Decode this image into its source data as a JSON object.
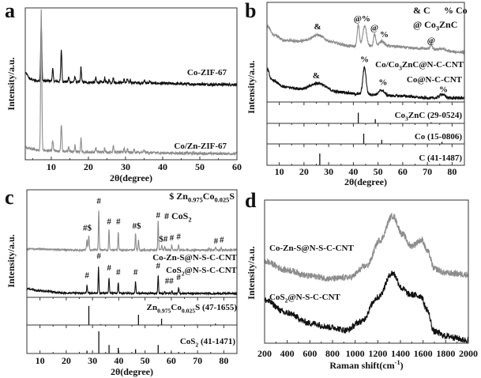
{
  "chart_data": [
    {
      "panel_label": "a",
      "type": "line",
      "xlabel": "2θ(degree)",
      "ylabel": "Intensity/a.u.",
      "xlim": [
        3,
        60
      ],
      "ylim": [
        0,
        100
      ],
      "xticks": [
        10,
        20,
        30,
        40,
        50,
        60
      ],
      "minor_step": 5,
      "series": [
        {
          "name": "Co-ZIF-67",
          "color": "#111111",
          "noise": 0.9,
          "baseline": [
            [
              3,
              57
            ],
            [
              4.5,
              53
            ],
            [
              6,
              52
            ],
            [
              20,
              51
            ],
            [
              60,
              49.5
            ]
          ],
          "peaks": [
            [
              7.3,
              38,
              0.22
            ],
            [
              10.4,
              8,
              0.2
            ],
            [
              12.7,
              21,
              0.2
            ],
            [
              14.7,
              3,
              0.18
            ],
            [
              16.4,
              4,
              0.18
            ],
            [
              18.0,
              10,
              0.18
            ],
            [
              22.0,
              3,
              0.18
            ],
            [
              24.4,
              3,
              0.18
            ],
            [
              25.6,
              2,
              0.18
            ],
            [
              26.7,
              3,
              0.18
            ],
            [
              29.6,
              2,
              0.18
            ],
            [
              30.5,
              2.5,
              0.18
            ],
            [
              31.3,
              2,
              0.18
            ],
            [
              35.0,
              2,
              0.2
            ],
            [
              36.5,
              1.5,
              0.2
            ]
          ]
        },
        {
          "name": "Co/Zn-ZIF-67",
          "color": "#8c8c8c",
          "noise": 0.9,
          "baseline": [
            [
              3,
              8
            ],
            [
              5,
              7
            ],
            [
              7,
              6
            ],
            [
              20,
              5
            ],
            [
              60,
              4
            ]
          ],
          "peaks": [
            [
              7.3,
              94,
              0.22
            ],
            [
              10.4,
              7,
              0.2
            ],
            [
              12.7,
              18,
              0.2
            ],
            [
              14.7,
              3,
              0.18
            ],
            [
              16.4,
              4,
              0.18
            ],
            [
              18.0,
              9,
              0.18
            ],
            [
              22.0,
              3,
              0.18
            ],
            [
              24.4,
              3,
              0.18
            ],
            [
              26.7,
              5,
              0.18
            ],
            [
              29.6,
              3,
              0.18
            ],
            [
              30.5,
              2.5,
              0.18
            ],
            [
              32.3,
              2,
              0.18
            ],
            [
              35.0,
              1.5,
              0.2
            ]
          ]
        }
      ],
      "references": [],
      "annotations": [],
      "legend": []
    },
    {
      "panel_label": "b",
      "type": "line",
      "xlabel": "2θ(degree)",
      "ylabel": "Intensity/a.u.",
      "xlim": [
        5,
        85
      ],
      "ylim": [
        0,
        100
      ],
      "xticks": [
        10,
        20,
        30,
        40,
        50,
        60,
        70,
        80
      ],
      "minor_step": 5,
      "series": [
        {
          "name": "Co/Co_{3}ZnC@N-C-CNT",
          "color": "#8c8c8c",
          "noise": 1.4,
          "baseline": [
            [
              5,
              76
            ],
            [
              8,
              67
            ],
            [
              12,
              62
            ],
            [
              18,
              61
            ],
            [
              30,
              60
            ],
            [
              40,
              56
            ],
            [
              55,
              56
            ],
            [
              65,
              54
            ],
            [
              85,
              50
            ]
          ],
          "peaks": [
            [
              25.5,
              7,
              3.5
            ],
            [
              42.0,
              22,
              0.6
            ],
            [
              44.6,
              20,
              1.1
            ],
            [
              48.6,
              12,
              0.6
            ],
            [
              51.5,
              5,
              1.5
            ],
            [
              71.5,
              5,
              0.6
            ],
            [
              76,
              2,
              1.5
            ]
          ]
        },
        {
          "name": "Co@N-C-CNT",
          "color": "#111111",
          "noise": 1.4,
          "baseline": [
            [
              5,
              33
            ],
            [
              7,
              22
            ],
            [
              12,
              15
            ],
            [
              20,
              13
            ],
            [
              35,
              10
            ],
            [
              42,
              8
            ],
            [
              60,
              6
            ],
            [
              70,
              4
            ],
            [
              85,
              4
            ]
          ],
          "peaks": [
            [
              26,
              7,
              4
            ],
            [
              44.5,
              27,
              0.9
            ],
            [
              51.5,
              5,
              1.5
            ],
            [
              76,
              4,
              1.5
            ]
          ]
        }
      ],
      "references": [
        {
          "name": "Co_{3}ZnC (29-0524)",
          "sticks": [
            [
              42.0,
              0.5
            ],
            [
              48.9,
              0.2
            ],
            [
              71.5,
              0.05
            ]
          ]
        },
        {
          "name": "Co (15-0806)",
          "sticks": [
            [
              44.2,
              0.5
            ],
            [
              51.5,
              0.2
            ],
            [
              75.9,
              0.1
            ]
          ]
        },
        {
          "name": "C (41-1487)",
          "sticks": [
            [
              26.4,
              0.55
            ]
          ]
        }
      ],
      "annotations": [
        {
          "text": "&",
          "x": 25.5,
          "y": 73,
          "color": "#111111"
        },
        {
          "text": "@%",
          "x": 43.5,
          "y": 81,
          "color": "#111111"
        },
        {
          "text": "@",
          "x": 48.5,
          "y": 72,
          "color": "#111111"
        },
        {
          "text": "%",
          "x": 52.5,
          "y": 65,
          "color": "#111111"
        },
        {
          "text": "@",
          "x": 71.5,
          "y": 59,
          "color": "#111111"
        },
        {
          "text": "%",
          "x": 44.5,
          "y": 40,
          "color": "#111111"
        },
        {
          "text": "&",
          "x": 25.0,
          "y": 24,
          "color": "#111111"
        },
        {
          "text": "%",
          "x": 52.0,
          "y": 17,
          "color": "#111111"
        },
        {
          "text": "%",
          "x": 76.5,
          "y": 10,
          "color": "#111111"
        }
      ],
      "legend": [
        "& C",
        "% Co",
        "@ Co_{3}ZnC"
      ]
    },
    {
      "panel_label": "c",
      "type": "line",
      "xlabel": "2θ(degree)",
      "ylabel": "Intensity/a.u.",
      "xlim": [
        5,
        85
      ],
      "ylim": [
        0,
        100
      ],
      "xticks": [
        10,
        20,
        30,
        40,
        50,
        60,
        70,
        80
      ],
      "minor_step": 5,
      "series": [
        {
          "name": "Co-Zn-S@N-S-C-CNT",
          "color": "#8c8c8c",
          "noise": 0.8,
          "baseline": [
            [
              5,
              45
            ],
            [
              25,
              44
            ],
            [
              85,
              44
            ]
          ],
          "peaks": [
            [
              27.9,
              10,
              0.25
            ],
            [
              28.6,
              13,
              0.25
            ],
            [
              32.4,
              38,
              0.2
            ],
            [
              36.3,
              19,
              0.2
            ],
            [
              39.8,
              17,
              0.2
            ],
            [
              46.4,
              16,
              0.2
            ],
            [
              47.5,
              10,
              0.2
            ],
            [
              55.0,
              28,
              0.2
            ],
            [
              56.4,
              5,
              0.2
            ],
            [
              57.5,
              3,
              0.2
            ],
            [
              60.2,
              5,
              0.2
            ],
            [
              62.8,
              5,
              0.2
            ],
            [
              74.5,
              2,
              0.2
            ],
            [
              76.9,
              3,
              0.2
            ],
            [
              79.0,
              2,
              0.2
            ]
          ]
        },
        {
          "name": "CoS_{2}@N-S-C-CNT",
          "color": "#111111",
          "noise": 0.8,
          "baseline": [
            [
              5,
              8
            ],
            [
              10,
              6
            ],
            [
              20,
              4
            ],
            [
              85,
              3.5
            ]
          ],
          "peaks": [
            [
              27.9,
              8,
              0.2
            ],
            [
              32.3,
              24,
              0.2
            ],
            [
              36.3,
              14,
              0.2
            ],
            [
              39.8,
              10,
              0.2
            ],
            [
              46.4,
              11,
              0.2
            ],
            [
              55.0,
              17,
              0.2
            ],
            [
              57.5,
              1.5,
              0.2
            ],
            [
              60.2,
              2.5,
              0.2
            ],
            [
              62.8,
              5,
              0.2
            ],
            [
              74.5,
              1,
              0.2
            ]
          ]
        }
      ],
      "references": [
        {
          "name": "Zn_{0.975}Co_{0.025}S (47-1655)",
          "sticks": [
            [
              28.6,
              0.69
            ],
            [
              33.1,
              0.03
            ],
            [
              47.5,
              0.37
            ],
            [
              56.3,
              0.23
            ],
            [
              69.5,
              0.02
            ],
            [
              76.8,
              0.05
            ]
          ]
        },
        {
          "name": "CoS_{2} (41-1471)",
          "sticks": [
            [
              27.9,
              0.1
            ],
            [
              32.4,
              0.78
            ],
            [
              36.3,
              0.3
            ],
            [
              39.8,
              0.2
            ],
            [
              46.4,
              0.15
            ],
            [
              55.0,
              0.3
            ],
            [
              57.5,
              0.06
            ],
            [
              60.0,
              0.05
            ],
            [
              62.8,
              0.05
            ]
          ]
        }
      ],
      "annotations": [
        {
          "text": "#$",
          "x": 28.0,
          "y": 62,
          "color": "#111111"
        },
        {
          "text": "#",
          "x": 32.4,
          "y": 87,
          "color": "#111111"
        },
        {
          "text": "#",
          "x": 36.3,
          "y": 68,
          "color": "#111111"
        },
        {
          "text": "#",
          "x": 39.8,
          "y": 68,
          "color": "#111111"
        },
        {
          "text": "#$",
          "x": 46.8,
          "y": 64,
          "color": "#111111"
        },
        {
          "text": "#",
          "x": 55.0,
          "y": 74,
          "color": "#111111"
        },
        {
          "text": "$#",
          "x": 57.0,
          "y": 52,
          "color": "#111111"
        },
        {
          "text": "#",
          "x": 60.2,
          "y": 53,
          "color": "#111111"
        },
        {
          "text": "#",
          "x": 62.8,
          "y": 54,
          "color": "#111111"
        },
        {
          "text": "#",
          "x": 77.0,
          "y": 50,
          "color": "#111111"
        },
        {
          "text": "#",
          "x": 79.2,
          "y": 51,
          "color": "#111111"
        },
        {
          "text": "#",
          "x": 27.9,
          "y": 18,
          "color": "#111111"
        },
        {
          "text": "#",
          "x": 32.4,
          "y": 36,
          "color": "#111111"
        },
        {
          "text": "#",
          "x": 36.3,
          "y": 25,
          "color": "#111111"
        },
        {
          "text": "#",
          "x": 39.8,
          "y": 21,
          "color": "#111111"
        },
        {
          "text": "#",
          "x": 46.4,
          "y": 21,
          "color": "#111111"
        },
        {
          "text": "#",
          "x": 55.0,
          "y": 27,
          "color": "#111111"
        },
        {
          "text": "##",
          "x": 59.2,
          "y": 13,
          "color": "#111111"
        },
        {
          "text": "#",
          "x": 62.8,
          "y": 16,
          "color": "#111111"
        }
      ],
      "legend": [
        "$ Zn_{0.975}Co_{0.025}S",
        "# CoS_{2}"
      ]
    },
    {
      "panel_label": "d",
      "type": "line",
      "xlabel": "Raman shift(cm^{-1})",
      "ylabel": "Intensity/a.u.",
      "xlim": [
        200,
        2000
      ],
      "ylim": [
        0,
        100
      ],
      "xticks": [
        200,
        400,
        600,
        800,
        1000,
        1200,
        1400,
        1600,
        1800,
        2000
      ],
      "minor_step": 100,
      "series": [
        {
          "name": "Co-Zn-S@N-S-C-CNT",
          "color": "#8c8c8c",
          "noise": 2.2,
          "baseline": [
            [
              200,
              57
            ],
            [
              400,
              51
            ],
            [
              600,
              47
            ],
            [
              800,
              45
            ],
            [
              950,
              46
            ],
            [
              1100,
              54
            ],
            [
              1220,
              72
            ],
            [
              1330,
              89
            ],
            [
              1420,
              76
            ],
            [
              1490,
              68
            ],
            [
              1590,
              72
            ],
            [
              1640,
              64
            ],
            [
              1700,
              52
            ],
            [
              1800,
              49
            ],
            [
              2000,
              48
            ]
          ],
          "peaks": []
        },
        {
          "name": "CoS_{2}@N-S-C-CNT",
          "color": "#111111",
          "noise": 2.2,
          "baseline": [
            [
              200,
              30
            ],
            [
              400,
              21
            ],
            [
              600,
              14
            ],
            [
              800,
              11
            ],
            [
              920,
              9
            ],
            [
              1050,
              15
            ],
            [
              1200,
              32
            ],
            [
              1330,
              49
            ],
            [
              1420,
              38
            ],
            [
              1480,
              34
            ],
            [
              1580,
              33
            ],
            [
              1630,
              24
            ],
            [
              1700,
              8
            ],
            [
              1800,
              5
            ],
            [
              2000,
              2
            ]
          ],
          "peaks": []
        }
      ],
      "references": [],
      "annotations": [],
      "legend": []
    }
  ]
}
